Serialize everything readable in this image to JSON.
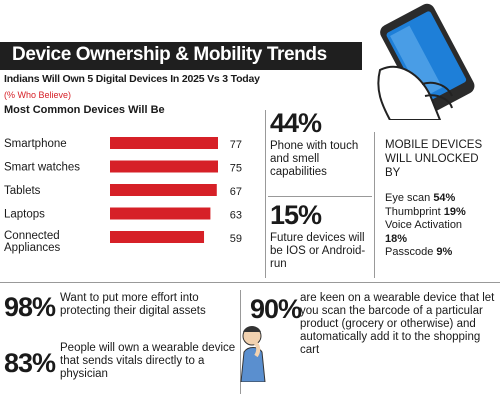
{
  "header": {
    "title": "Device Ownership & Mobility Trends",
    "subtitle": "Indians Will Own 5 Digital Devices In 2025 Vs 3 Today",
    "note": "(% Who Believe)",
    "section_heading": "Most Common Devices Will Be"
  },
  "chart_data": {
    "type": "bar",
    "orientation": "horizontal",
    "categories": [
      "Smartphone",
      "Smart watches",
      "Tablets",
      "Laptops",
      "Connected Appliances"
    ],
    "values": [
      77,
      75,
      67,
      63,
      59
    ],
    "xlim": [
      0,
      100
    ],
    "bar_color": "#d62027",
    "grid": false
  },
  "stats": {
    "touch_smell": {
      "pct": "44%",
      "text": "Phone with touch and smell capabilities"
    },
    "ios_android": {
      "pct": "15%",
      "text": "Future devices will be IOS or Android-run"
    },
    "digital_assets": {
      "pct": "98%",
      "text": "Want to put more effort into protecting their digital assets"
    },
    "vitals": {
      "pct": "83%",
      "text": "People will own a wearable device that sends vitals directly to a physician"
    },
    "barcode": {
      "pct": "90%",
      "text": "are keen on a wearable device that let you scan the barcode of a particular product (grocery or otherwise) and automatically add it to the shopping cart"
    }
  },
  "unlock": {
    "heading": "MOBILE DEVICES WILL UNLOCKED BY",
    "items": [
      {
        "label": "Eye scan",
        "value": "54%"
      },
      {
        "label": "Thumbprint",
        "value": "19%"
      },
      {
        "label": "Voice Activation",
        "value": "18%"
      },
      {
        "label": "Passcode",
        "value": "9%"
      }
    ]
  },
  "colors": {
    "accent": "#d62027",
    "title_bg": "#1f1f1f",
    "phone_screen": "#1e7fd8"
  },
  "icons": {
    "phone": "hand-holding-phone-icon",
    "person": "thinking-person-icon"
  }
}
